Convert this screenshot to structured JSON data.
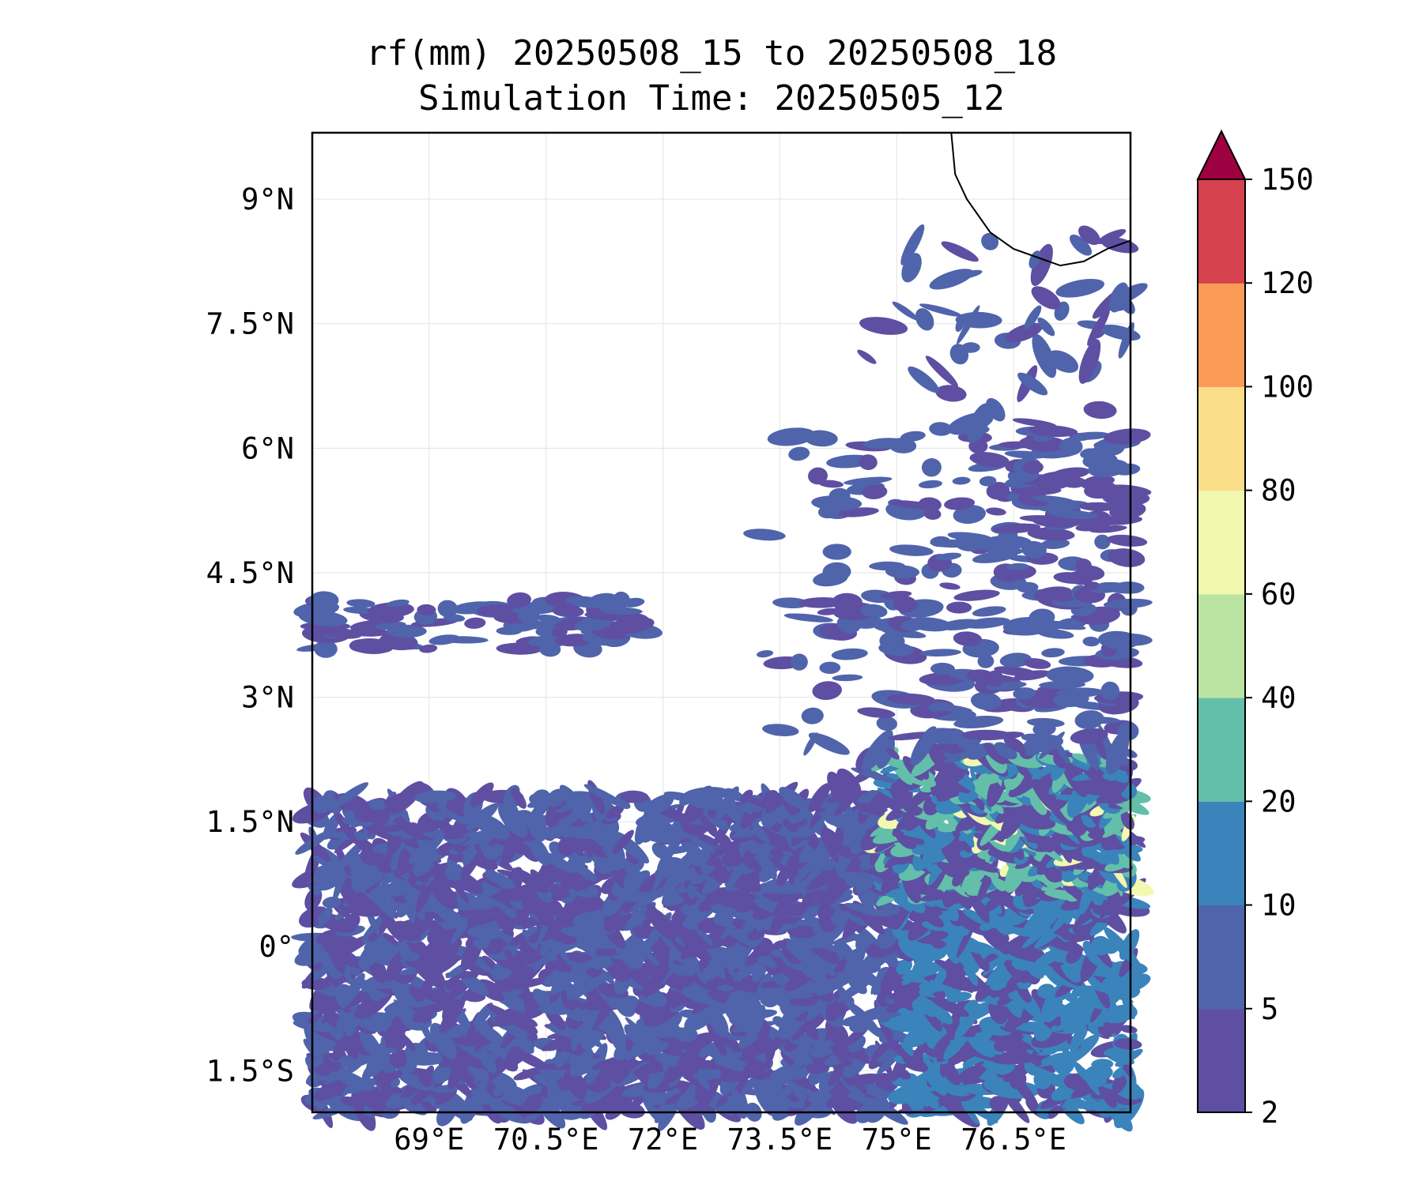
{
  "title": {
    "line1": "rf(mm) 20250508_15 to 20250508_18",
    "line2": "Simulation Time: 20250505_12"
  },
  "map": {
    "variable": "rf(mm)",
    "lon_range": [
      67.5,
      78.0
    ],
    "lat_range": [
      -2.0,
      9.8
    ],
    "xticks": [
      {
        "value": 69.0,
        "label": "69°E"
      },
      {
        "value": 70.5,
        "label": "70.5°E"
      },
      {
        "value": 72.0,
        "label": "72°E"
      },
      {
        "value": 73.5,
        "label": "73.5°E"
      },
      {
        "value": 75.0,
        "label": "75°E"
      },
      {
        "value": 76.5,
        "label": "76.5°E"
      }
    ],
    "yticks": [
      {
        "value": 9.0,
        "label": "9°N"
      },
      {
        "value": 7.5,
        "label": "7.5°N"
      },
      {
        "value": 6.0,
        "label": "6°N"
      },
      {
        "value": 4.5,
        "label": "4.5°N"
      },
      {
        "value": 3.0,
        "label": "3°N"
      },
      {
        "value": 1.5,
        "label": "1.5°N"
      },
      {
        "value": 0.0,
        "label": "0°"
      },
      {
        "value": -1.5,
        "label": "1.5°S"
      }
    ],
    "grid": true,
    "coastline": [
      [
        75.7,
        9.8
      ],
      [
        75.75,
        9.3
      ],
      [
        75.9,
        9.0
      ],
      [
        76.2,
        8.6
      ],
      [
        76.5,
        8.4
      ],
      [
        76.8,
        8.3
      ],
      [
        77.1,
        8.2
      ],
      [
        77.4,
        8.25
      ],
      [
        77.7,
        8.4
      ],
      [
        78.0,
        8.5
      ]
    ]
  },
  "colorbar": {
    "levels": [
      2,
      5,
      10,
      20,
      40,
      60,
      80,
      100,
      120,
      150
    ],
    "tick_labels": [
      "2",
      "5",
      "10",
      "20",
      "40",
      "60",
      "80",
      "100",
      "120",
      "150"
    ],
    "colors": [
      "#5e4fa2",
      "#4f64ab",
      "#3b83bb",
      "#63bfa9",
      "#bbe3a2",
      "#f2f8b0",
      "#fbde8a",
      "#fa9c57",
      "#d6414e"
    ],
    "extend_color": "#9e0142",
    "extend": "max"
  }
}
